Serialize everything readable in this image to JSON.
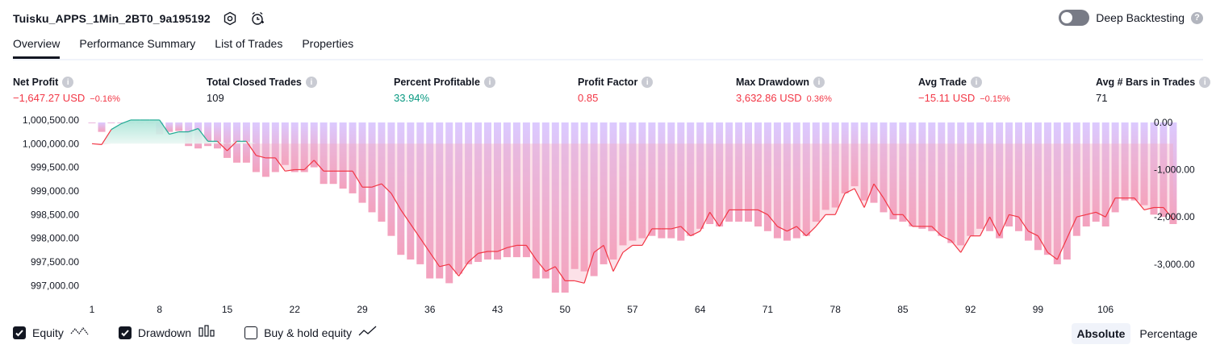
{
  "header": {
    "strategy_name": "Tuisku_APPS_1Min_2BT0_9a195192",
    "deep_backtesting_label": "Deep Backtesting",
    "deep_backtesting_enabled": false,
    "help_icon": "question-icon",
    "settings_icon": "settings-icon",
    "alert_icon": "alarm-clock-icon"
  },
  "tabs": [
    {
      "label": "Overview",
      "active": true
    },
    {
      "label": "Performance Summary",
      "active": false
    },
    {
      "label": "List of Trades",
      "active": false
    },
    {
      "label": "Properties",
      "active": false
    }
  ],
  "metrics": {
    "net_profit": {
      "label": "Net Profit",
      "value": "−1,647.27 USD",
      "pct": "−0.16%"
    },
    "total_closed_trades": {
      "label": "Total Closed Trades",
      "value": "109"
    },
    "percent_profitable": {
      "label": "Percent Profitable",
      "value": "33.94%"
    },
    "profit_factor": {
      "label": "Profit Factor",
      "value": "0.85"
    },
    "max_drawdown": {
      "label": "Max Drawdown",
      "value": "3,632.86 USD",
      "pct": "0.36%"
    },
    "avg_trade": {
      "label": "Avg Trade",
      "value": "−15.11 USD",
      "pct": "−0.15%"
    },
    "avg_bars": {
      "label": "Avg # Bars in Trades",
      "value": "71"
    }
  },
  "colors": {
    "negative": "#f23645",
    "positive": "#089981",
    "equity_up": "#22ab94",
    "equity_down": "#f23645",
    "drawdown_bar": "#d9c6ff",
    "accent_dark": "#131722"
  },
  "chart_data": {
    "type": "line",
    "x_ticks": [
      "1",
      "8",
      "15",
      "22",
      "29",
      "36",
      "43",
      "50",
      "57",
      "64",
      "71",
      "78",
      "85",
      "92",
      "99",
      "106"
    ],
    "left_axis_ticks": [
      "1,000,500.00",
      "1,000,000.00",
      "999,500.00",
      "999,000.00",
      "998,500.00",
      "998,000.00",
      "997,500.00",
      "997,000.00"
    ],
    "right_axis_ticks": [
      "0.00",
      "-1,000.00",
      "-2,000.00",
      "-3,000.00"
    ],
    "left_ylim": [
      996800,
      1000550
    ],
    "right_ylim": [
      -3650,
      100
    ],
    "xlim": [
      1,
      110
    ],
    "initial_capital": 1000000,
    "series": [
      {
        "name": "Equity",
        "axis": "left",
        "values": [
          1000000,
          999980,
          1000300,
          1000420,
          1000500,
          1000500,
          1000500,
          1000500,
          1000200,
          1000250,
          1000250,
          1000320,
          1000050,
          1000050,
          999850,
          1000050,
          1000050,
          999750,
          999700,
          999700,
          999420,
          999450,
          999450,
          999650,
          999420,
          999420,
          999420,
          999420,
          999080,
          999080,
          999150,
          998950,
          998600,
          998300,
          998000,
          997700,
          997400,
          997450,
          997200,
          997500,
          997680,
          997720,
          997720,
          997800,
          997850,
          997850,
          997550,
          997300,
          997400,
          997100,
          997100,
          997050,
          997700,
          997850,
          997300,
          997700,
          997850,
          997850,
          998200,
          998200,
          998200,
          998250,
          998050,
          998150,
          998550,
          998250,
          998600,
          998600,
          998600,
          998600,
          998500,
          998250,
          998150,
          998250,
          998050,
          998250,
          998500,
          998500,
          998950,
          999050,
          998650,
          999150,
          998850,
          998500,
          998500,
          998250,
          998250,
          998250,
          998050,
          997950,
          997700,
          998050,
          998050,
          998450,
          998050,
          998500,
          998450,
          998150,
          998050,
          997700,
          997550,
          998000,
          998450,
          998500,
          998550,
          998450,
          998850,
          998850,
          998850,
          998600,
          998650,
          998650,
          998400
        ],
        "line": true
      },
      {
        "name": "Drawdown",
        "axis": "right",
        "values": [
          0,
          -200,
          0,
          0,
          0,
          0,
          0,
          -250,
          -200,
          -180,
          -500,
          -550,
          -500,
          -550,
          -750,
          -850,
          -850,
          -1050,
          -1150,
          -1050,
          -900,
          -1050,
          -1050,
          -950,
          -1300,
          -1300,
          -1400,
          -1500,
          -1700,
          -1900,
          -2100,
          -2400,
          -2800,
          -2900,
          -3000,
          -3300,
          -3300,
          -3400,
          -3200,
          -3000,
          -2950,
          -2900,
          -2900,
          -2850,
          -2850,
          -2850,
          -3300,
          -3300,
          -3600,
          -3600,
          -3100,
          -3150,
          -3250,
          -3000,
          -2900,
          -2600,
          -2500,
          -2450,
          -2400,
          -2450,
          -2450,
          -2500,
          -2400,
          -2250,
          -2150,
          -2200,
          -2100,
          -2100,
          -2100,
          -2200,
          -2300,
          -2450,
          -2500,
          -2450,
          -2400,
          -2100,
          -1850,
          -1800,
          -1500,
          -1350,
          -1650,
          -1700,
          -1900,
          -2050,
          -2100,
          -2200,
          -2250,
          -2300,
          -2400,
          -2550,
          -2600,
          -2400,
          -2250,
          -2300,
          -2450,
          -2200,
          -2300,
          -2500,
          -2700,
          -2800,
          -3000,
          -2900,
          -2400,
          -2200,
          -2100,
          -2200,
          -1900,
          -1650,
          -1650,
          -1750,
          -1950,
          -2000,
          -2150
        ],
        "bars": true
      }
    ],
    "legend": [
      {
        "name": "Equity",
        "checked": true,
        "icon": "equity-line-icon"
      },
      {
        "name": "Drawdown",
        "checked": true,
        "icon": "drawdown-bars-icon"
      },
      {
        "name": "Buy & hold equity",
        "checked": false,
        "icon": "buy-hold-line-icon"
      }
    ],
    "grid": false
  },
  "modes": [
    {
      "label": "Absolute",
      "active": true
    },
    {
      "label": "Percentage",
      "active": false
    }
  ]
}
